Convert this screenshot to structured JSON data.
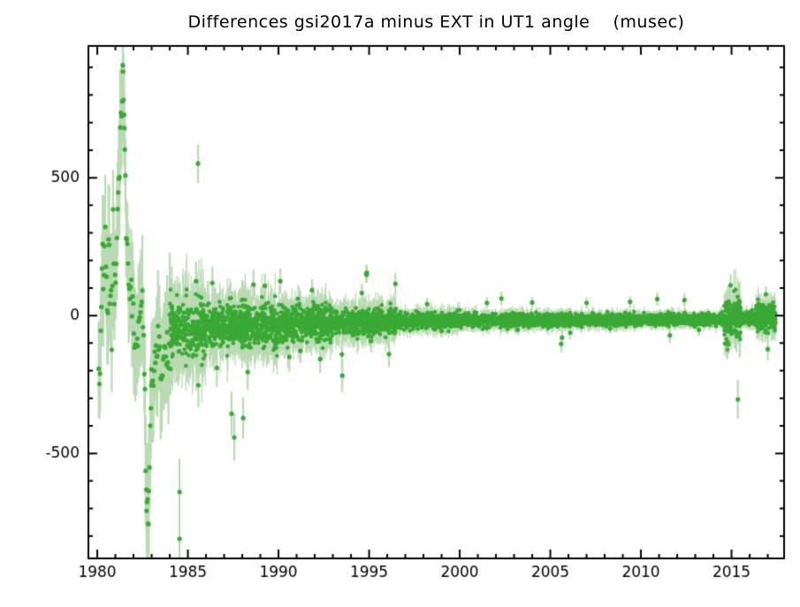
{
  "chart_data": {
    "type": "scatter",
    "title": "Differences gsi2017a minus EXT in UT1 angle    (musec)",
    "xlabel": "",
    "ylabel": "",
    "units": "musec",
    "xlim": [
      1979.51,
      2017.9
    ],
    "ylim": [
      -881,
      978
    ],
    "x_major_ticks": [
      1980,
      1985,
      1990,
      1995,
      2000,
      2005,
      2010,
      2015
    ],
    "x_minor_step": 1,
    "x_minor_range": [
      1980,
      2017
    ],
    "y_major_ticks": [
      {
        "value": 500,
        "label": "500"
      },
      {
        "value": 0,
        "label": "0"
      },
      {
        "value": -500,
        "label": "-500"
      }
    ],
    "y_minor_step": 100,
    "y_minor_range": [
      -800,
      900
    ],
    "grid": false,
    "legend": null,
    "colors": {
      "point": "#3aa935",
      "error_bar": "#b9dab2",
      "axis": "#000000",
      "background": "#ffffff"
    },
    "marker": {
      "shape": "circle",
      "radius": 2.3
    },
    "seed": 20170421,
    "early_era": {
      "x_start": 1980.08,
      "x_end": 1984.0,
      "n": 110,
      "sigma": 45,
      "err_min": 120,
      "err_max": 230,
      "keypoints": [
        [
          1980.08,
          -150
        ],
        [
          1980.16,
          -212
        ],
        [
          1980.22,
          30
        ],
        [
          1980.3,
          250
        ],
        [
          1980.36,
          120
        ],
        [
          1980.44,
          270
        ],
        [
          1980.5,
          225
        ],
        [
          1980.57,
          -60
        ],
        [
          1980.64,
          397
        ],
        [
          1980.69,
          60
        ],
        [
          1980.74,
          186
        ],
        [
          1980.79,
          -120
        ],
        [
          1980.83,
          110
        ],
        [
          1980.88,
          430
        ],
        [
          1980.93,
          0
        ],
        [
          1981.0,
          140
        ],
        [
          1981.1,
          320
        ],
        [
          1981.22,
          540
        ],
        [
          1981.32,
          700
        ],
        [
          1981.42,
          885
        ],
        [
          1981.5,
          680
        ],
        [
          1981.58,
          340
        ],
        [
          1981.66,
          180
        ],
        [
          1981.76,
          60
        ],
        [
          1981.87,
          150
        ],
        [
          1981.96,
          50
        ],
        [
          1982.05,
          -80
        ],
        [
          1982.15,
          -115
        ],
        [
          1982.25,
          -55
        ],
        [
          1982.35,
          5
        ],
        [
          1982.45,
          16
        ],
        [
          1982.52,
          -51
        ],
        [
          1982.62,
          -280
        ],
        [
          1982.72,
          -708
        ],
        [
          1982.82,
          -756
        ],
        [
          1982.92,
          -420
        ],
        [
          1983.0,
          -253
        ],
        [
          1983.1,
          -150
        ],
        [
          1983.2,
          -106
        ],
        [
          1983.32,
          -165
        ],
        [
          1983.42,
          -112
        ],
        [
          1983.55,
          -180
        ],
        [
          1983.66,
          -115
        ],
        [
          1983.8,
          -145
        ],
        [
          1983.92,
          -100
        ],
        [
          1984.0,
          -85
        ]
      ]
    },
    "band_segments": [
      {
        "x_start": 1984.0,
        "x_end": 1986.0,
        "n": 300,
        "mean": -50,
        "sigma": 48,
        "err_mean": 110
      },
      {
        "x_start": 1986.0,
        "x_end": 1990.0,
        "n": 600,
        "mean": -38,
        "sigma": 36,
        "err_mean": 70
      },
      {
        "x_start": 1990.0,
        "x_end": 1993.0,
        "n": 450,
        "mean": -28,
        "sigma": 30,
        "err_mean": 55
      },
      {
        "x_start": 1993.0,
        "x_end": 1996.5,
        "n": 520,
        "mean": -22,
        "sigma": 22,
        "err_mean": 45
      },
      {
        "x_start": 1996.5,
        "x_end": 2000.0,
        "n": 520,
        "mean": -18,
        "sigma": 13,
        "err_mean": 28
      },
      {
        "x_start": 2000.0,
        "x_end": 2005.0,
        "n": 760,
        "mean": -17,
        "sigma": 11,
        "err_mean": 22
      },
      {
        "x_start": 2005.0,
        "x_end": 2010.0,
        "n": 800,
        "mean": -16,
        "sigma": 10,
        "err_mean": 20
      },
      {
        "x_start": 2010.0,
        "x_end": 2014.6,
        "n": 720,
        "mean": -14,
        "sigma": 9,
        "err_mean": 18
      },
      {
        "x_start": 2014.6,
        "x_end": 2015.5,
        "n": 170,
        "mean": -10,
        "sigma": 38,
        "err_mean": 55
      },
      {
        "x_start": 2015.5,
        "x_end": 2016.35,
        "n": 150,
        "mean": -12,
        "sigma": 11,
        "err_mean": 20
      },
      {
        "x_start": 2016.35,
        "x_end": 2017.45,
        "n": 170,
        "mean": -6,
        "sigma": 24,
        "err_mean": 40
      }
    ],
    "outliers": [
      [
        1981.42,
        885,
        100
      ],
      [
        1981.5,
        680,
        130
      ],
      [
        1982.72,
        -708,
        140
      ],
      [
        1982.82,
        -756,
        120
      ],
      [
        1982.98,
        -253,
        110
      ],
      [
        1984.54,
        -640,
        120
      ],
      [
        1984.54,
        -810,
        100
      ],
      [
        1985.56,
        551,
        70
      ],
      [
        1985.58,
        -253,
        80
      ],
      [
        1985.45,
        125,
        70
      ],
      [
        1986.35,
        118,
        60
      ],
      [
        1986.6,
        -190,
        70
      ],
      [
        1987.41,
        -356,
        80
      ],
      [
        1987.56,
        -442,
        85
      ],
      [
        1988.05,
        -372,
        75
      ],
      [
        1988.3,
        -205,
        65
      ],
      [
        1988.62,
        112,
        55
      ],
      [
        1989.25,
        108,
        45
      ],
      [
        1990.1,
        125,
        45
      ],
      [
        1990.6,
        -150,
        55
      ],
      [
        1991.2,
        -128,
        45
      ],
      [
        1991.85,
        92,
        40
      ],
      [
        1992.3,
        -158,
        50
      ],
      [
        1993.5,
        -141,
        55
      ],
      [
        1993.52,
        -218,
        60
      ],
      [
        1994.84,
        152,
        32
      ],
      [
        1994.86,
        148,
        30
      ],
      [
        1994.88,
        155,
        30
      ],
      [
        1994.6,
        82,
        32
      ],
      [
        1995.1,
        -92,
        40
      ],
      [
        1996.1,
        -140,
        48
      ],
      [
        1996.45,
        115,
        40
      ],
      [
        1998.2,
        42,
        22
      ],
      [
        1999.0,
        -56,
        24
      ],
      [
        2001.5,
        46,
        20
      ],
      [
        2002.3,
        62,
        24
      ],
      [
        2003.2,
        -52,
        20
      ],
      [
        2004.0,
        47,
        20
      ],
      [
        2005.6,
        -103,
        30
      ],
      [
        2005.65,
        -80,
        28
      ],
      [
        2006.1,
        -62,
        24
      ],
      [
        2007.0,
        46,
        20
      ],
      [
        2008.3,
        -47,
        20
      ],
      [
        2009.4,
        50,
        20
      ],
      [
        2010.9,
        60,
        24
      ],
      [
        2011.6,
        -72,
        28
      ],
      [
        2012.4,
        56,
        24
      ],
      [
        2013.2,
        -52,
        22
      ],
      [
        2014.95,
        110,
        40
      ],
      [
        2015.35,
        -304,
        70
      ],
      [
        2016.9,
        77,
        30
      ],
      [
        2017.0,
        -122,
        40
      ]
    ]
  }
}
